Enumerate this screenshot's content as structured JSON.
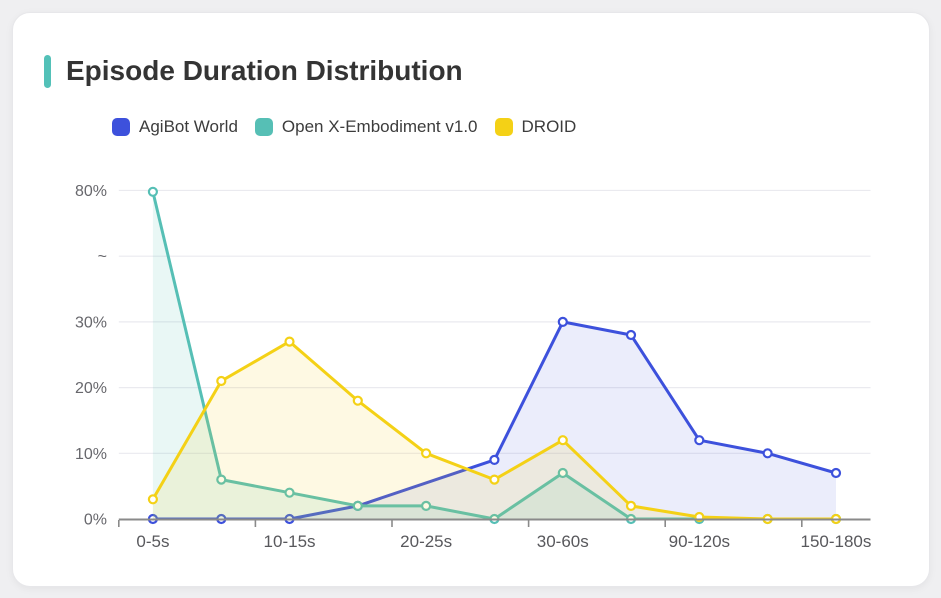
{
  "page": {
    "title": "Episode Duration Distribution"
  },
  "legend": [
    {
      "label": "AgiBot World",
      "color": "#3d51dc"
    },
    {
      "label": "Open X-Embodiment v1.0",
      "color": "#56bfb5"
    },
    {
      "label": "DROID",
      "color": "#f4d116"
    }
  ],
  "colors": {
    "accent_bar": "#53c1b8",
    "title_text": "#343434",
    "card_background": "#ffffff",
    "page_background": "#efeff1",
    "axis_line": "#8a8a8a",
    "grid_line": "#eaeaef",
    "y_tick_label": "#67676c",
    "x_tick_label": "#58585c"
  },
  "chart_data": {
    "type": "line",
    "title": "Episode Duration Distribution",
    "categories": [
      "0-5s",
      "",
      "10-15s",
      "",
      "20-25s",
      "",
      "30-60s",
      "",
      "90-120s",
      "",
      "150-180s"
    ],
    "series": [
      {
        "name": "AgiBot World",
        "color": "#3d51dc",
        "values": [
          0,
          0,
          0,
          2,
          null,
          9,
          30,
          28,
          12,
          10,
          7
        ]
      },
      {
        "name": "Open X-Embodiment v1.0",
        "color": "#56bfb5",
        "values": [
          79.5,
          6,
          4,
          2,
          2,
          0,
          7,
          0,
          0,
          0,
          0
        ]
      },
      {
        "name": "DROID",
        "color": "#f4d116",
        "values": [
          3,
          21,
          27,
          18,
          10,
          6,
          12,
          2,
          0.3,
          0,
          0
        ]
      }
    ],
    "xlabel": "",
    "ylabel": "",
    "y_axis": {
      "tick_labels": [
        "0%",
        "10%",
        "20%",
        "30%",
        "~",
        "80%"
      ],
      "tick_values": [
        0,
        10,
        20,
        30,
        null,
        80
      ],
      "axis_break_between": [
        30,
        80
      ],
      "unit": "%"
    },
    "area_fill": true,
    "grid": true,
    "markers": "hollow-circle",
    "legend_position": "top-left"
  }
}
